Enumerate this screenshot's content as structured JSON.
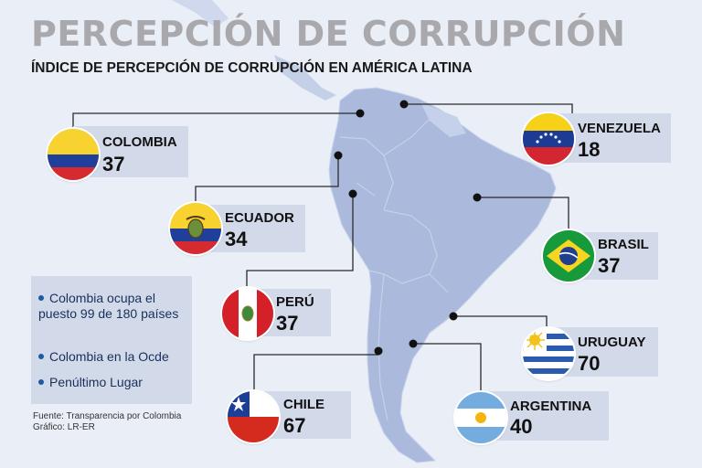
{
  "header": {
    "title": "PERCEPCIÓN DE CORRUPCIÓN",
    "subtitle": "ÍNDICE DE PERCEPCIÓN DE CORRUPCIÓN EN AMÉRICA LATINA"
  },
  "countries": [
    {
      "name": "COLOMBIA",
      "score": "37"
    },
    {
      "name": "VENEZUELA",
      "score": "18"
    },
    {
      "name": "ECUADOR",
      "score": "34"
    },
    {
      "name": "BRASIL",
      "score": "37"
    },
    {
      "name": "PERÚ",
      "score": "37"
    },
    {
      "name": "URUGUAY",
      "score": "70"
    },
    {
      "name": "CHILE",
      "score": "67"
    },
    {
      "name": "ARGENTINA",
      "score": "40"
    }
  ],
  "info": {
    "items": [
      "Colombia ocupa el puesto 99 de 180 países",
      "Colombia en la Ocde",
      "Penúltimo Lugar"
    ]
  },
  "footer": {
    "source": "Fuente: Transparencia por Colombia",
    "graphic": "Gráfico: LR-ER"
  },
  "colors": {
    "background": "#e9eef7",
    "land": "#aab9dc",
    "card": "#d2daea",
    "title": "#a9a9ad"
  }
}
